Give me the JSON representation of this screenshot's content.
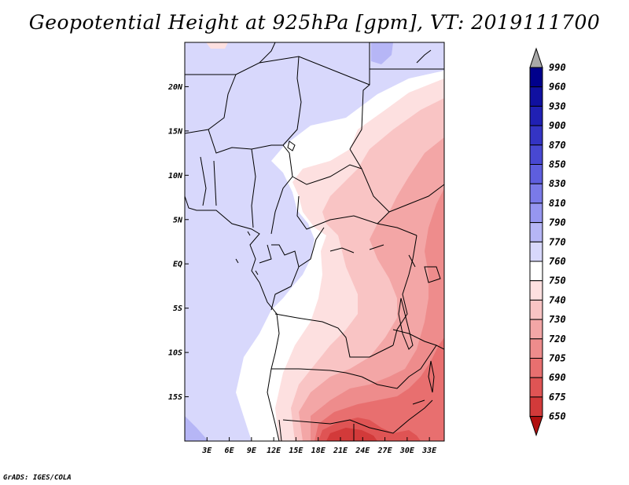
{
  "title": "Geopotential Height at 925hPa [gpm], VT: 2019111700",
  "footer": "GrADS: IGES/COLA",
  "map": {
    "lon_range": [
      0,
      35
    ],
    "lat_range": [
      -20,
      25
    ],
    "lat_ticks": [
      {
        "value": 20,
        "label": "20N"
      },
      {
        "value": 15,
        "label": "15N"
      },
      {
        "value": 10,
        "label": "10N"
      },
      {
        "value": 5,
        "label": "5N"
      },
      {
        "value": 0,
        "label": "EQ"
      },
      {
        "value": -5,
        "label": "5S"
      },
      {
        "value": -10,
        "label": "10S"
      },
      {
        "value": -15,
        "label": "15S"
      }
    ],
    "lon_ticks": [
      {
        "value": 3,
        "label": "3E"
      },
      {
        "value": 6,
        "label": "6E"
      },
      {
        "value": 9,
        "label": "9E"
      },
      {
        "value": 12,
        "label": "12E"
      },
      {
        "value": 15,
        "label": "15E"
      },
      {
        "value": 18,
        "label": "18E"
      },
      {
        "value": 21,
        "label": "21E"
      },
      {
        "value": 24,
        "label": "24E"
      },
      {
        "value": 27,
        "label": "27E"
      },
      {
        "value": 30,
        "label": "30E"
      },
      {
        "value": 33,
        "label": "33E"
      }
    ]
  },
  "colorbar": {
    "levels": [
      {
        "label": "990",
        "color": "#00008c"
      },
      {
        "label": "960",
        "color": "#1010a0"
      },
      {
        "label": "930",
        "color": "#2020b4"
      },
      {
        "label": "900",
        "color": "#3434c4"
      },
      {
        "label": "870",
        "color": "#4848d2"
      },
      {
        "label": "850",
        "color": "#5e5ede"
      },
      {
        "label": "830",
        "color": "#7a7ae8"
      },
      {
        "label": "810",
        "color": "#9696f0"
      },
      {
        "label": "790",
        "color": "#b6b6f6"
      },
      {
        "label": "770",
        "color": "#d8d8fc"
      },
      {
        "label": "760",
        "color": "#ffffff"
      },
      {
        "label": "750",
        "color": "#fde0e0"
      },
      {
        "label": "740",
        "color": "#f9c4c4"
      },
      {
        "label": "730",
        "color": "#f3a6a6"
      },
      {
        "label": "720",
        "color": "#ee8c8c"
      },
      {
        "label": "705",
        "color": "#e86f6f"
      },
      {
        "label": "690",
        "color": "#df5454"
      },
      {
        "label": "675",
        "color": "#d23a3a"
      },
      {
        "label": "650",
        "color": "#c21e1e"
      }
    ],
    "top_arrow_color": "#a8a8a8",
    "bottom_arrow_color": "#b01010"
  }
}
